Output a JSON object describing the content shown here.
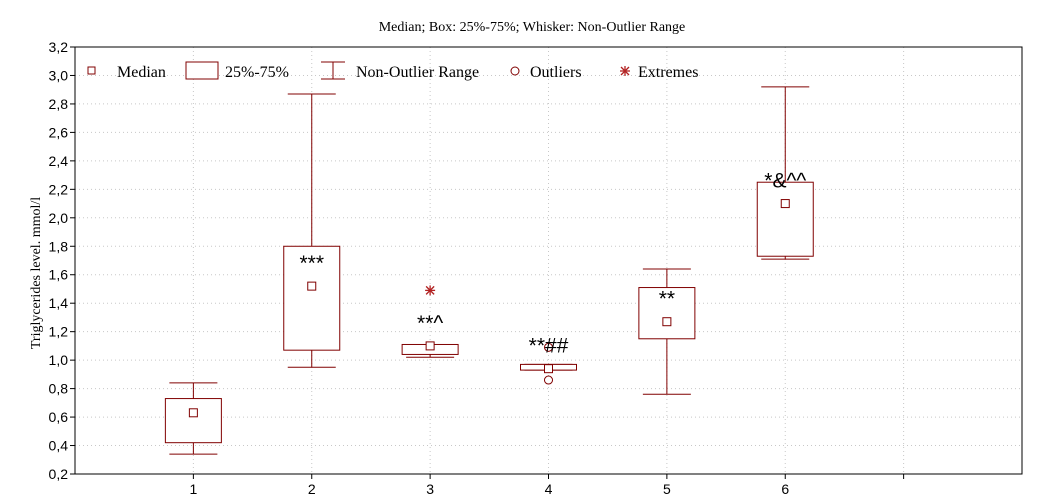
{
  "chart_data": {
    "type": "boxplot",
    "title": "Median; Box: 25%-75%; Whisker: Non-Outlier Range",
    "xlabel": "",
    "ylabel": "Triglycerides level. mmol/l",
    "ylim": [
      0.2,
      3.2
    ],
    "yticks": [
      "0,2",
      "0,4",
      "0,6",
      "0,8",
      "1,0",
      "1,2",
      "1,4",
      "1,6",
      "1,8",
      "2,0",
      "2,2",
      "2,4",
      "2,6",
      "2,8",
      "3,0",
      "3,2"
    ],
    "categories": [
      "1",
      "2",
      "3",
      "4",
      "5",
      "6"
    ],
    "grid": true,
    "legend_position": "top",
    "legend": {
      "median": "Median",
      "box": "25%-75%",
      "whisker": "Non-Outlier Range",
      "outliers": "Outliers",
      "extremes": "Extremes"
    },
    "colors": {
      "primary": "#800000",
      "extreme": "#b22222",
      "grid": "#c8c8c8"
    },
    "boxes": [
      {
        "category": "1",
        "whisker_low": 0.34,
        "q1": 0.42,
        "median": 0.63,
        "q3": 0.73,
        "whisker_high": 0.84,
        "outliers": [],
        "extremes": [],
        "annotation": ""
      },
      {
        "category": "2",
        "whisker_low": 0.95,
        "q1": 1.07,
        "median": 1.52,
        "q3": 1.8,
        "whisker_high": 2.87,
        "outliers": [],
        "extremes": [],
        "annotation": "***"
      },
      {
        "category": "3",
        "whisker_low": 1.02,
        "q1": 1.04,
        "median": 1.1,
        "q3": 1.11,
        "whisker_high": 1.11,
        "outliers": [],
        "extremes": [
          1.49
        ],
        "annotation": "**^"
      },
      {
        "category": "4",
        "whisker_low": 0.93,
        "q1": 0.93,
        "median": 0.94,
        "q3": 0.97,
        "whisker_high": 0.97,
        "outliers": [
          0.86,
          1.09
        ],
        "extremes": [],
        "annotation": "**##"
      },
      {
        "category": "5",
        "whisker_low": 0.76,
        "q1": 1.15,
        "median": 1.27,
        "q3": 1.51,
        "whisker_high": 1.64,
        "outliers": [],
        "extremes": [],
        "annotation": "**"
      },
      {
        "category": "6",
        "whisker_low": 1.71,
        "q1": 1.73,
        "median": 2.1,
        "q3": 2.25,
        "whisker_high": 2.92,
        "outliers": [],
        "extremes": [],
        "annotation": "*&^^"
      }
    ]
  }
}
